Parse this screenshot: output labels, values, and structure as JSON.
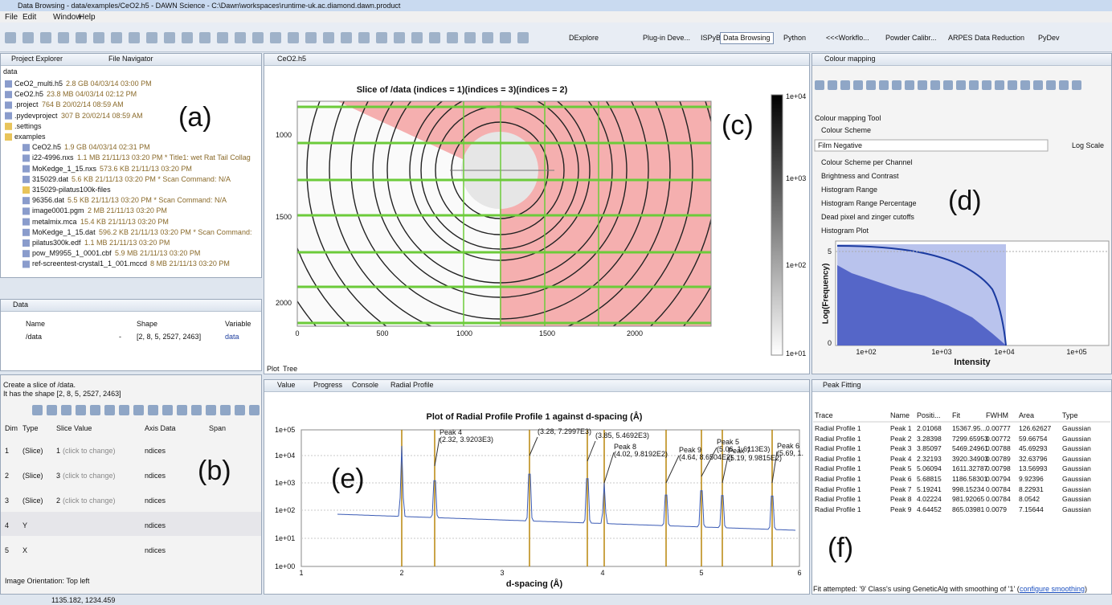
{
  "window": {
    "title": "Data Browsing - data/examples/CeO2.h5 - DAWN Science - C:\\Dawn\\workspaces\\runtime-uk.ac.diamond.dawn.product",
    "menu": [
      "File",
      "Edit",
      "Window",
      "Help"
    ],
    "perspectives": [
      "DExplore",
      "Plug-in Deve...",
      "ISPyB",
      "Data Browsing",
      "Python",
      "<<<Workflo...",
      "Powder Calibr...",
      "ARPES Data Reduction",
      "PyDev"
    ],
    "status": "1135.182, 1234.459"
  },
  "project_explorer": {
    "tabs": [
      "Project Explorer",
      "File Navigator"
    ],
    "path": "data",
    "label": "(a)",
    "items": [
      {
        "name": "CeO2_multi.h5",
        "info": "2.8 GB  04/03/14 03:00 PM"
      },
      {
        "name": "CeO2.h5",
        "info": "23.8 MB  04/03/14 02:12 PM"
      },
      {
        "name": ".project",
        "info": "764 B  20/02/14 08:59 AM"
      },
      {
        "name": ".pydevproject",
        "info": "307 B  20/02/14 08:59 AM"
      },
      {
        "name": ".settings"
      },
      {
        "name": "examples"
      },
      {
        "name": "CeO2.h5",
        "info": "1.9 GB  04/03/14 02:31 PM"
      },
      {
        "name": "i22-4996.nxs",
        "info": "1.1 MB  21/11/13 03:20 PM * Title1: wet Rat Tail Collag"
      },
      {
        "name": "MoKedge_1_15.nxs",
        "info": "573.6 KB  21/11/13 03:20 PM"
      },
      {
        "name": "315029.dat",
        "info": "5.6 KB  21/11/13 03:20 PM * Scan Command: N/A"
      },
      {
        "name": "315029-pilatus100k-files"
      },
      {
        "name": "96356.dat",
        "info": "5.5 KB  21/11/13 03:20 PM * Scan Command: N/A"
      },
      {
        "name": "image0001.pgm",
        "info": "2 MB  21/11/13 03:20 PM"
      },
      {
        "name": "metalmix.mca",
        "info": "15.4 KB  21/11/13 03:20 PM"
      },
      {
        "name": "MoKedge_1_15.dat",
        "info": "596.2 KB  21/11/13 03:20 PM * Scan Command:"
      },
      {
        "name": "pilatus300k.edf",
        "info": "1.1 MB  21/11/13 03:20 PM"
      },
      {
        "name": "pow_M9955_1_0001.cbf",
        "info": "5.9 MB  21/11/13 03:20 PM"
      },
      {
        "name": "ref-screentest-crystal1_1_001.mccd",
        "info": "8 MB  21/11/13 03:20 PM"
      }
    ]
  },
  "data_panel": {
    "tab": "Data",
    "headers": [
      "Name",
      "Shape",
      "Variable"
    ],
    "row": {
      "name": "/data",
      "dash": "-",
      "shape": "[2, 8, 5, 2527, 2463]",
      "variable": "data"
    }
  },
  "slice_panel": {
    "description": [
      "Create a slice of /data.",
      "It has the shape [2, 8, 5, 2527, 2463]"
    ],
    "headers": [
      "Dim",
      "Type",
      "Slice Value",
      "Axis Data",
      "Span"
    ],
    "label": "(b)",
    "rows": [
      {
        "dim": "1",
        "type": "(Slice)",
        "value": "1",
        "hint": "(click to change)",
        "axis": "ndices"
      },
      {
        "dim": "2",
        "type": "(Slice)",
        "value": "3",
        "hint": "(click to change)",
        "axis": "ndices"
      },
      {
        "dim": "3",
        "type": "(Slice)",
        "value": "2",
        "hint": "(click to change)",
        "axis": "ndices"
      },
      {
        "dim": "4",
        "type": "Y",
        "axis": "ndices"
      },
      {
        "dim": "5",
        "type": "X",
        "axis": "ndices"
      }
    ],
    "orientation": "Image Orientation: Top left"
  },
  "image_panel": {
    "tab": "CeO2.h5",
    "title": "Slice of /data (indices = 1)(indices = 3)(indices = 2)",
    "xticks": [
      "0",
      "500",
      "1000",
      "1500",
      "2000"
    ],
    "yticks": [
      "1000",
      "1500",
      "2000"
    ],
    "colorbar_ticks": [
      "1e+04",
      "1e+03",
      "1e+02",
      "1e+01"
    ],
    "bottom_tabs": [
      "Plot",
      "Tree"
    ],
    "label": "(c)"
  },
  "colour_mapping": {
    "tab": "Colour mapping",
    "tool": "Colour mapping Tool",
    "scheme_header": "Colour Scheme",
    "scheme": "Film Negative",
    "log_scale": "Log Scale",
    "sections": [
      "Colour Scheme per Channel",
      "Brightness and Contrast",
      "Histogram Range",
      "Histogram Range Percentage",
      "Dead pixel and zinger cutoffs",
      "Histogram Plot"
    ],
    "ylabel": "Log(Frequency)",
    "xlabel": "Intensity",
    "xticks": [
      "1e+02",
      "1e+03",
      "1e+04",
      "1e+05"
    ],
    "yticks": [
      "5",
      "0"
    ],
    "label": "(d)"
  },
  "profile_panel": {
    "tabs": [
      "Value",
      "Progress",
      "Console",
      "Radial Profile"
    ],
    "title": "Plot of Radial Profile Profile 1 against d-spacing (Å)",
    "xlabel": "d-spacing (Å)",
    "xticks": [
      "1",
      "2",
      "3",
      "4",
      "5",
      "6"
    ],
    "yticks": [
      "1e+05",
      "1e+04",
      "1e+03",
      "1e+02",
      "1e+01",
      "1e+00"
    ],
    "label": "(e)",
    "annotations": [
      {
        "name": "Peak 4",
        "coords": "(2.32, 3.9203E3)"
      },
      {
        "coords": "(3.28, 7.2997E3)"
      },
      {
        "coords": "(3.85, 5.4692E3)"
      },
      {
        "name": "Peak 8",
        "coords": "(4.02, 9.8192E2)"
      },
      {
        "name": "Peak 9",
        "coords": "(4.64, 8.6504E2)"
      },
      {
        "name": "Peak 5",
        "coords": "(5.06, 1.6113E3)"
      },
      {
        "name": "Peak 7",
        "coords": "(5.19, 9.9815E2)"
      },
      {
        "name": "Peak 6",
        "coords": "(5.69, 1."
      }
    ]
  },
  "peak_fitting": {
    "tab": "Peak Fitting",
    "headers": [
      "Trace",
      "Name",
      "Positi...",
      "Fit",
      "FWHM",
      "Area",
      "Type"
    ],
    "label": "(f)",
    "rows": [
      [
        "Radial Profile 1",
        "Peak 1",
        "2.01068",
        "15367.95...",
        "0.00777",
        "126.62627",
        "Gaussian"
      ],
      [
        "Radial Profile 1",
        "Peak 2",
        "3.28398",
        "7299.65953",
        "0.00772",
        "59.66754",
        "Gaussian"
      ],
      [
        "Radial Profile 1",
        "Peak 3",
        "3.85097",
        "5469.24961",
        "0.00788",
        "45.69293",
        "Gaussian"
      ],
      [
        "Radial Profile 1",
        "Peak 4",
        "2.32193",
        "3920.34903",
        "0.00789",
        "32.63796",
        "Gaussian"
      ],
      [
        "Radial Profile 1",
        "Peak 5",
        "5.06094",
        "1611.32787",
        "0.00798",
        "13.56993",
        "Gaussian"
      ],
      [
        "Radial Profile 1",
        "Peak 6",
        "5.68815",
        "1186.58301",
        "0.00794",
        "9.92396",
        "Gaussian"
      ],
      [
        "Radial Profile 1",
        "Peak 7",
        "5.19241",
        "998.15234",
        "0.00784",
        "8.22931",
        "Gaussian"
      ],
      [
        "Radial Profile 1",
        "Peak 8",
        "4.02224",
        "981.92065",
        "0.00784",
        "8.0542",
        "Gaussian"
      ],
      [
        "Radial Profile 1",
        "Peak 9",
        "4.64452",
        "865.03981",
        "0.0079",
        "7.15644",
        "Gaussian"
      ]
    ],
    "status": "Fit attempted: '9' Class's using GeneticAlg with smoothing of '1' (",
    "link": "configure smoothing",
    "status_end": ")"
  }
}
